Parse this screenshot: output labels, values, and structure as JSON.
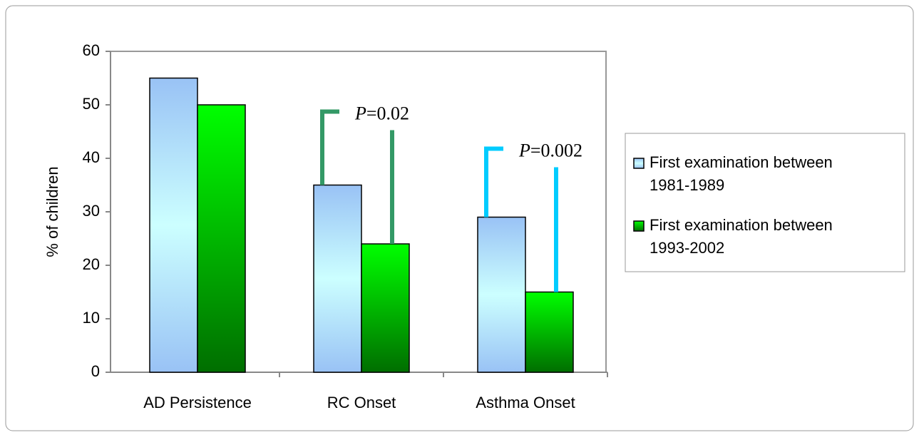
{
  "chart_data": {
    "type": "bar",
    "y_label": "% of children",
    "categories": [
      "AD Persistence",
      "RC Onset",
      "Asthma Onset"
    ],
    "series": [
      {
        "name": "First examination between 1981-1989",
        "color": "#99c2f5",
        "values": [
          55,
          35,
          29
        ]
      },
      {
        "name": "First examination between 1993-2002",
        "color": "#006e00",
        "values": [
          50,
          24,
          15
        ]
      }
    ],
    "ylim": [
      0,
      60
    ],
    "yticks": [
      0,
      10,
      20,
      30,
      40,
      50,
      60
    ],
    "annotations": [
      {
        "text": "P=0.02",
        "category": 1,
        "color": "#339966"
      },
      {
        "text": "P=0.002",
        "category": 2,
        "color": "#00ccff"
      }
    ],
    "legend": "right"
  }
}
